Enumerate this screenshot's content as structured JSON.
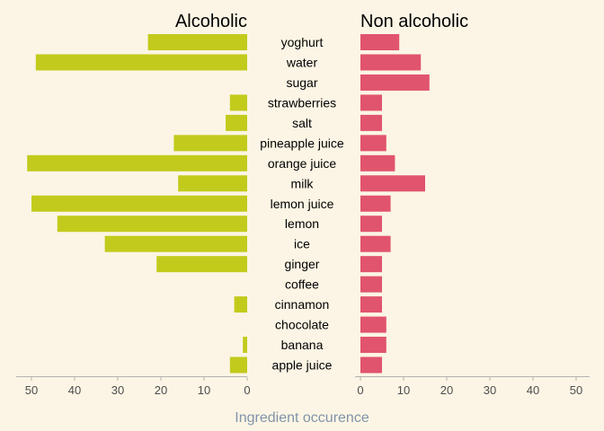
{
  "chart_data": {
    "type": "bar",
    "orientation": "horizontal",
    "layout": "back-to-back",
    "categories": [
      "yoghurt",
      "water",
      "sugar",
      "strawberries",
      "salt",
      "pineapple juice",
      "orange juice",
      "milk",
      "lemon juice",
      "lemon",
      "ice",
      "ginger",
      "coffee",
      "cinnamon",
      "chocolate",
      "banana",
      "apple juice"
    ],
    "series": [
      {
        "name": "Alcoholic",
        "color": "#C2CB1C",
        "values": [
          23,
          49,
          0,
          4,
          5,
          17,
          51,
          16,
          50,
          44,
          33,
          21,
          0,
          3,
          0,
          1,
          4
        ]
      },
      {
        "name": "Non alcoholic",
        "color": "#E1546D",
        "values": [
          9,
          14,
          16,
          5,
          5,
          6,
          8,
          15,
          7,
          5,
          7,
          5,
          5,
          5,
          6,
          6,
          5
        ]
      }
    ],
    "xlim": [
      0,
      50
    ],
    "ticks": [
      "50",
      "40",
      "30",
      "20",
      "10",
      "0",
      "0",
      "10",
      "20",
      "30",
      "40",
      "50"
    ],
    "xlabel": "Ingredient occurence",
    "grid": false,
    "legend": "none"
  },
  "colors": {
    "background": "#FCF5E5",
    "axis": "#B3B3B3",
    "tick_text": "#4D4D4D",
    "axis_title": "#8094A8"
  }
}
